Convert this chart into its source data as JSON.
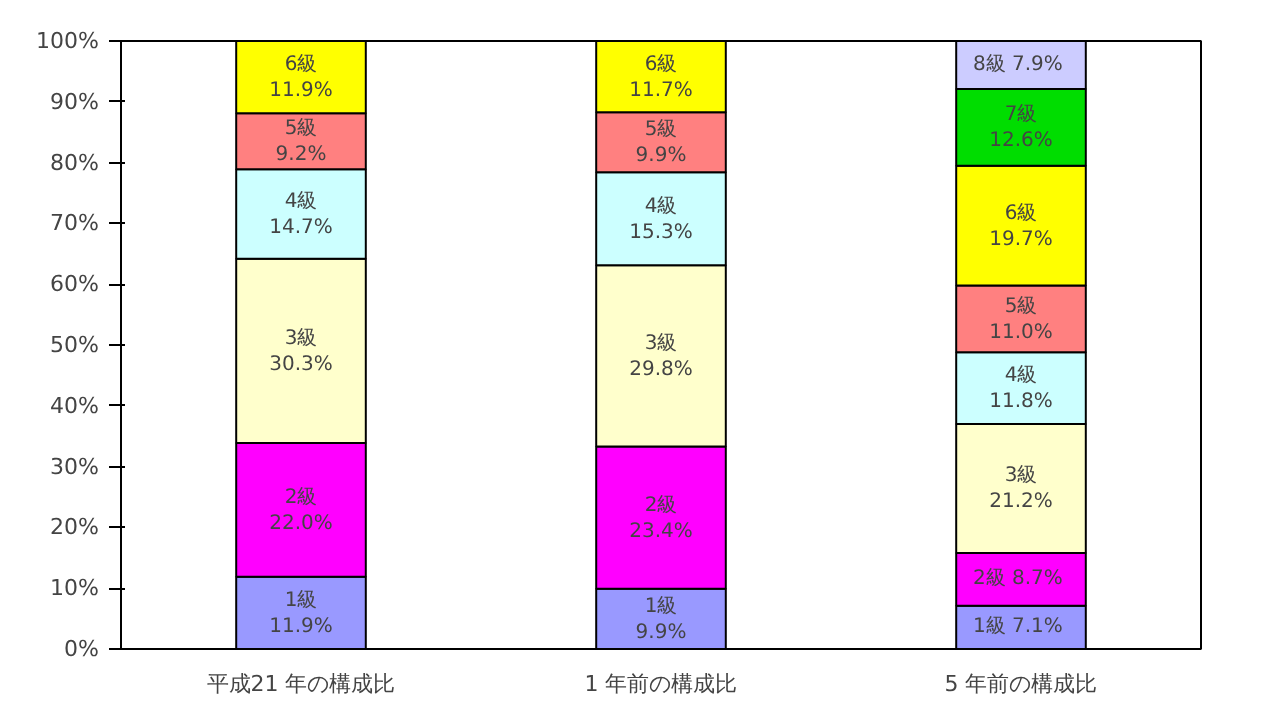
{
  "chart_data": {
    "type": "bar",
    "stacked": true,
    "categories": [
      "平成21 年の構成比",
      "1 年前の構成比",
      "5 年前の構成比"
    ],
    "ylim": [
      0,
      100
    ],
    "yticks": [
      {
        "value": 0,
        "label": "0%"
      },
      {
        "value": 10,
        "label": "10%"
      },
      {
        "value": 20,
        "label": "20%"
      },
      {
        "value": 30,
        "label": "30%"
      },
      {
        "value": 40,
        "label": "40%"
      },
      {
        "value": 50,
        "label": "50%"
      },
      {
        "value": 60,
        "label": "60%"
      },
      {
        "value": 70,
        "label": "70%"
      },
      {
        "value": 80,
        "label": "80%"
      },
      {
        "value": 90,
        "label": "90%"
      },
      {
        "value": 100,
        "label": "100%"
      }
    ],
    "grid": false,
    "series": [
      {
        "name": "1級",
        "color": "#9999ff",
        "values": [
          11.9,
          9.9,
          7.1
        ],
        "value_labels": [
          "11.9%",
          "9.9%",
          "7.1%"
        ]
      },
      {
        "name": "2級",
        "color": "#ff00ff",
        "values": [
          22.0,
          23.4,
          8.7
        ],
        "value_labels": [
          "22.0%",
          "23.4%",
          "8.7%"
        ]
      },
      {
        "name": "3級",
        "color": "#ffffcc",
        "values": [
          30.3,
          29.8,
          21.2
        ],
        "value_labels": [
          "30.3%",
          "29.8%",
          "21.2%"
        ]
      },
      {
        "name": "4級",
        "color": "#ccffff",
        "values": [
          14.7,
          15.3,
          11.8
        ],
        "value_labels": [
          "14.7%",
          "15.3%",
          "11.8%"
        ]
      },
      {
        "name": "5級",
        "color": "#ff8080",
        "values": [
          9.2,
          9.9,
          11.0
        ],
        "value_labels": [
          "9.2%",
          "9.9%",
          "11.0%"
        ]
      },
      {
        "name": "6級",
        "color": "#ffff00",
        "values": [
          11.9,
          11.7,
          19.7
        ],
        "value_labels": [
          "11.9%",
          "11.7%",
          "19.7%"
        ]
      },
      {
        "name": "7級",
        "color": "#00dd00",
        "values": [
          null,
          null,
          12.6
        ],
        "value_labels": [
          null,
          null,
          "12.6%"
        ]
      },
      {
        "name": "8級",
        "color": "#ccccff",
        "values": [
          null,
          null,
          7.9
        ],
        "value_labels": [
          null,
          null,
          "7.9%"
        ]
      }
    ]
  }
}
